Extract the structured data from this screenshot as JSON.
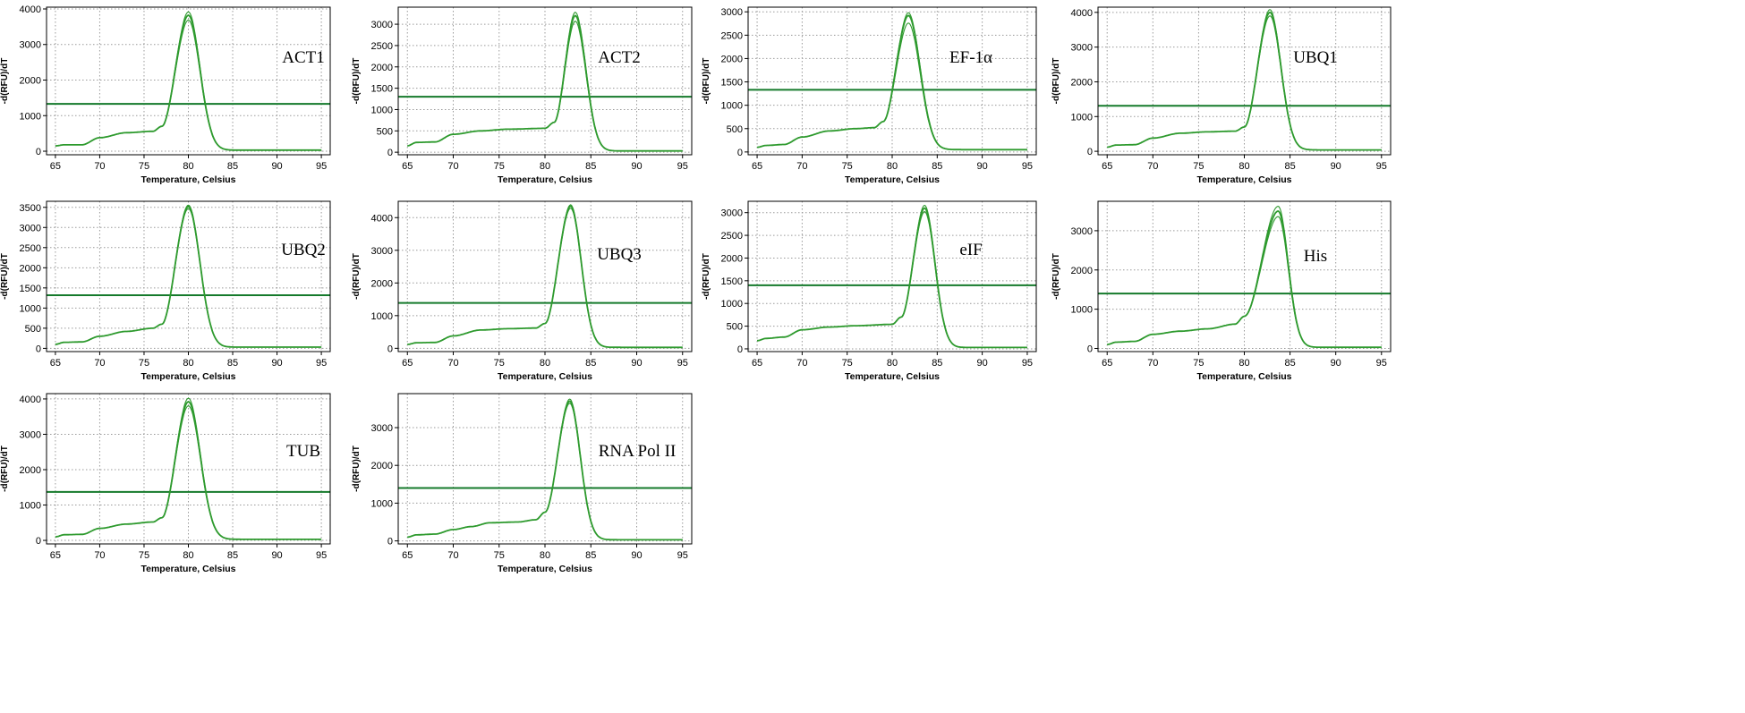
{
  "chart_data": [
    {
      "type": "line",
      "label": "ACT1",
      "xlabel": "Temperature, Celsius",
      "ylabel": "-d(RFU)/dT",
      "xlim": [
        64,
        96
      ],
      "ylim": [
        -100,
        4050
      ],
      "xticks": [
        65,
        70,
        75,
        80,
        85,
        90,
        95
      ],
      "yticks": [
        0,
        1000,
        2000,
        3000,
        4000
      ],
      "threshold": 1330,
      "curve": {
        "base": [
          [
            65,
            150
          ],
          [
            66,
            180
          ],
          [
            68,
            180
          ],
          [
            70,
            380
          ],
          [
            73,
            520
          ],
          [
            76,
            560
          ],
          [
            77,
            700
          ]
        ],
        "peak_t": 80.0,
        "peak": 3820,
        "right_sigma": 1.3,
        "tail": 30,
        "replicates": [
          1.0,
          0.965,
          1.025
        ]
      },
      "grid": true
    },
    {
      "type": "line",
      "label": "ACT2",
      "xlabel": "Temperature, Celsius",
      "ylabel": "-d(RFU)/dT",
      "xlim": [
        64,
        96
      ],
      "ylim": [
        -60,
        3400
      ],
      "xticks": [
        65,
        70,
        75,
        80,
        85,
        90,
        95
      ],
      "yticks": [
        0,
        500,
        1000,
        1500,
        2000,
        2500,
        3000
      ],
      "threshold": 1300,
      "curve": {
        "base": [
          [
            65,
            150
          ],
          [
            66,
            230
          ],
          [
            68,
            240
          ],
          [
            70,
            420
          ],
          [
            73,
            500
          ],
          [
            76,
            540
          ],
          [
            80,
            560
          ],
          [
            81,
            700
          ]
        ],
        "peak_t": 83.3,
        "peak": 3200,
        "right_sigma": 1.15,
        "tail": 30,
        "replicates": [
          1.0,
          0.96,
          1.025
        ]
      },
      "grid": true
    },
    {
      "type": "line",
      "label": "EF-1α",
      "xlabel": "Temperature, Celsius",
      "ylabel": "-d(RFU)/dT",
      "xlim": [
        64,
        96
      ],
      "ylim": [
        -60,
        3100
      ],
      "xticks": [
        65,
        70,
        75,
        80,
        85,
        90,
        95
      ],
      "yticks": [
        0,
        500,
        1000,
        1500,
        2000,
        2500,
        3000
      ],
      "threshold": 1330,
      "curve": {
        "base": [
          [
            65,
            100
          ],
          [
            66,
            140
          ],
          [
            68,
            160
          ],
          [
            70,
            320
          ],
          [
            73,
            450
          ],
          [
            76,
            500
          ],
          [
            78,
            520
          ],
          [
            79,
            650
          ]
        ],
        "peak_t": 81.8,
        "peak": 2920,
        "right_sigma": 1.3,
        "tail": 50,
        "replicates": [
          1.0,
          0.945,
          1.02
        ]
      },
      "grid": true
    },
    {
      "type": "line",
      "label": "UBQ1",
      "xlabel": "Temperature, Celsius",
      "ylabel": "-d(RFU)/dT",
      "xlim": [
        64,
        96
      ],
      "ylim": [
        -100,
        4150
      ],
      "xticks": [
        65,
        70,
        75,
        80,
        85,
        90,
        95
      ],
      "yticks": [
        0,
        1000,
        2000,
        3000,
        4000
      ],
      "threshold": 1310,
      "curve": {
        "base": [
          [
            65,
            120
          ],
          [
            66,
            180
          ],
          [
            68,
            190
          ],
          [
            70,
            380
          ],
          [
            73,
            520
          ],
          [
            76,
            560
          ],
          [
            79,
            580
          ],
          [
            80,
            700
          ]
        ],
        "peak_t": 82.8,
        "peak": 4000,
        "right_sigma": 1.2,
        "tail": 40,
        "replicates": [
          1.0,
          0.975,
          1.02
        ]
      },
      "grid": true
    },
    {
      "type": "line",
      "label": "UBQ2",
      "xlabel": "Temperature, Celsius",
      "ylabel": "-d(RFU)/dT",
      "xlim": [
        64,
        96
      ],
      "ylim": [
        -80,
        3650
      ],
      "xticks": [
        65,
        70,
        75,
        80,
        85,
        90,
        95
      ],
      "yticks": [
        0,
        500,
        1000,
        1500,
        2000,
        2500,
        3000,
        3500
      ],
      "threshold": 1320,
      "curve": {
        "base": [
          [
            65,
            100
          ],
          [
            66,
            150
          ],
          [
            68,
            160
          ],
          [
            70,
            300
          ],
          [
            73,
            420
          ],
          [
            76,
            500
          ],
          [
            77,
            600
          ]
        ],
        "peak_t": 80.0,
        "peak": 3520,
        "right_sigma": 1.3,
        "tail": 30,
        "replicates": [
          1.0,
          0.985,
          1.01
        ]
      },
      "grid": true
    },
    {
      "type": "line",
      "label": "UBQ3",
      "xlabel": "Temperature, Celsius",
      "ylabel": "-d(RFU)/dT",
      "xlim": [
        64,
        96
      ],
      "ylim": [
        -100,
        4500
      ],
      "xticks": [
        65,
        70,
        75,
        80,
        85,
        90,
        95
      ],
      "yticks": [
        0,
        1000,
        2000,
        3000,
        4000
      ],
      "threshold": 1390,
      "curve": {
        "base": [
          [
            65,
            120
          ],
          [
            66,
            170
          ],
          [
            68,
            180
          ],
          [
            70,
            380
          ],
          [
            73,
            560
          ],
          [
            76,
            600
          ],
          [
            79,
            620
          ],
          [
            80,
            760
          ]
        ],
        "peak_t": 82.8,
        "peak": 4350,
        "right_sigma": 1.15,
        "tail": 30,
        "replicates": [
          1.0,
          0.985,
          1.01
        ]
      },
      "grid": true
    },
    {
      "type": "line",
      "label": "eIF",
      "xlabel": "Temperature, Celsius",
      "ylabel": "-d(RFU)/dT",
      "xlim": [
        64,
        96
      ],
      "ylim": [
        -60,
        3250
      ],
      "xticks": [
        65,
        70,
        75,
        80,
        85,
        90,
        95
      ],
      "yticks": [
        0,
        500,
        1000,
        1500,
        2000,
        2500,
        3000
      ],
      "threshold": 1400,
      "curve": {
        "base": [
          [
            65,
            180
          ],
          [
            66,
            230
          ],
          [
            68,
            260
          ],
          [
            70,
            420
          ],
          [
            73,
            480
          ],
          [
            76,
            510
          ],
          [
            80,
            540
          ],
          [
            81,
            700
          ]
        ],
        "peak_t": 83.6,
        "peak": 3100,
        "right_sigma": 1.15,
        "tail": 30,
        "replicates": [
          1.0,
          0.975,
          1.02
        ]
      },
      "grid": true
    },
    {
      "type": "line",
      "label": "His",
      "xlabel": "Temperature, Celsius",
      "ylabel": "-d(RFU)/dT",
      "xlim": [
        64,
        96
      ],
      "ylim": [
        -80,
        3750
      ],
      "xticks": [
        65,
        70,
        75,
        80,
        85,
        90,
        95
      ],
      "yticks": [
        0,
        1000,
        2000,
        3000
      ],
      "threshold": 1400,
      "curve": {
        "base": [
          [
            65,
            100
          ],
          [
            66,
            160
          ],
          [
            68,
            180
          ],
          [
            70,
            360
          ],
          [
            73,
            440
          ],
          [
            76,
            500
          ],
          [
            79,
            620
          ],
          [
            80,
            820
          ]
        ],
        "peak_t": 83.7,
        "peak": 3500,
        "right_sigma": 1.1,
        "tail": 30,
        "replicates": [
          1.0,
          0.96,
          1.035
        ]
      },
      "grid": true
    },
    {
      "type": "line",
      "label": "TUB",
      "xlabel": "Temperature, Celsius",
      "ylabel": "-d(RFU)/dT",
      "xlim": [
        64,
        96
      ],
      "ylim": [
        -100,
        4150
      ],
      "xticks": [
        65,
        70,
        75,
        80,
        85,
        90,
        95
      ],
      "yticks": [
        0,
        1000,
        2000,
        3000,
        4000
      ],
      "threshold": 1370,
      "curve": {
        "base": [
          [
            65,
            100
          ],
          [
            66,
            160
          ],
          [
            68,
            170
          ],
          [
            70,
            340
          ],
          [
            73,
            460
          ],
          [
            76,
            520
          ],
          [
            77,
            640
          ]
        ],
        "peak_t": 80.0,
        "peak": 3920,
        "right_sigma": 1.35,
        "tail": 30,
        "replicates": [
          1.0,
          0.97,
          1.025
        ]
      },
      "grid": true
    },
    {
      "type": "line",
      "label": "RNA Pol II",
      "xlabel": "Temperature, Celsius",
      "ylabel": "-d(RFU)/dT",
      "xlim": [
        64,
        96
      ],
      "ylim": [
        -80,
        3900
      ],
      "xticks": [
        65,
        70,
        75,
        80,
        85,
        90,
        95
      ],
      "yticks": [
        0,
        1000,
        2000,
        3000
      ],
      "threshold": 1400,
      "curve": {
        "base": [
          [
            65,
            100
          ],
          [
            66,
            160
          ],
          [
            68,
            180
          ],
          [
            70,
            300
          ],
          [
            72,
            380
          ],
          [
            74,
            480
          ],
          [
            77,
            500
          ],
          [
            79,
            560
          ],
          [
            80,
            760
          ]
        ],
        "peak_t": 82.7,
        "peak": 3700,
        "right_sigma": 1.15,
        "tail": 30,
        "replicates": [
          1.0,
          0.985,
          1.015
        ]
      },
      "grid": true
    }
  ],
  "colors": {
    "curve": "#2e9a2e",
    "threshold": "#157a2b",
    "grid": "#9a9a9a",
    "axis": "#000000"
  }
}
